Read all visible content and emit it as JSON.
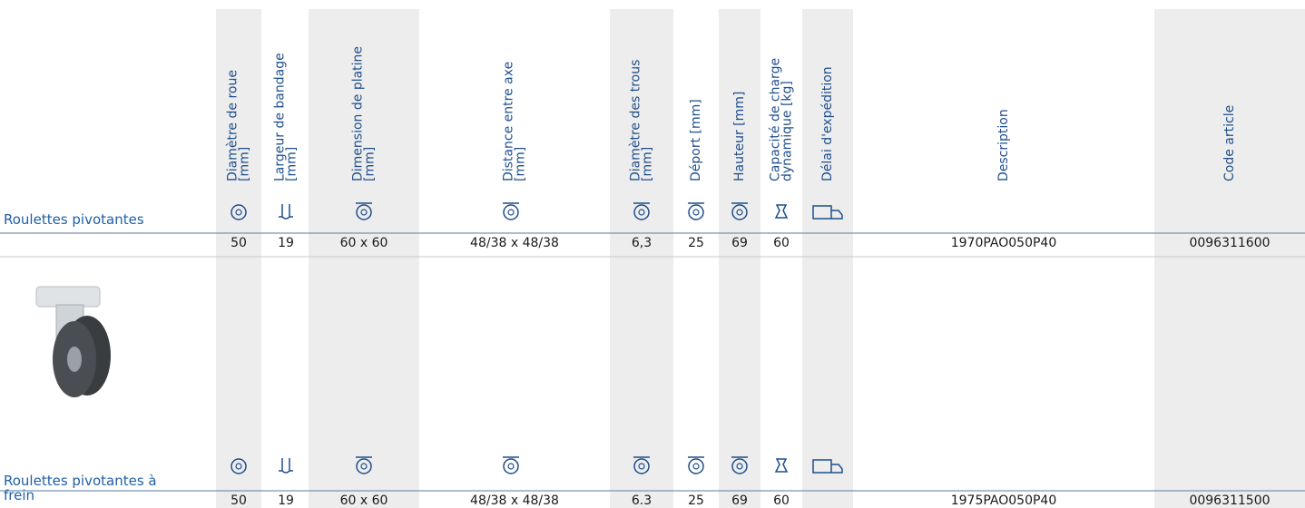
{
  "columns": [
    {
      "lines": [
        "Diamètre de roue",
        "[mm]"
      ]
    },
    {
      "lines": [
        "Largeur de bandage",
        "[mm]"
      ]
    },
    {
      "lines": [
        "Dimension de platine",
        "[mm]"
      ]
    },
    {
      "lines": [
        "Distance entre axe",
        "[mm]"
      ]
    },
    {
      "lines": [
        "Diamètre des trous",
        "[mm]"
      ]
    },
    {
      "lines": [
        "Déport [mm]"
      ]
    },
    {
      "lines": [
        "Hauteur [mm]"
      ]
    },
    {
      "lines": [
        "Capacité de charge",
        "dynamique [kg]"
      ]
    },
    {
      "lines": [
        "Délai d'expédition"
      ]
    },
    {
      "lines": [
        "Description"
      ]
    },
    {
      "lines": [
        "Code article"
      ]
    }
  ],
  "sections": [
    {
      "label": [
        "Roulettes pivotantes"
      ],
      "values": [
        "50",
        "19",
        "60 x 60",
        "48/38 x 48/38",
        "6,3",
        "25",
        "69",
        "60",
        null,
        "1970PAO050P40",
        "0096311600"
      ]
    },
    {
      "label": [
        "Roulettes pivotantes à",
        "frein"
      ],
      "values": [
        "50",
        "19",
        "60 x 60",
        "48/38 x 48/38",
        "6.3",
        "25",
        "69",
        "60",
        null,
        "1975PAO050P40",
        "0096311500"
      ]
    }
  ]
}
